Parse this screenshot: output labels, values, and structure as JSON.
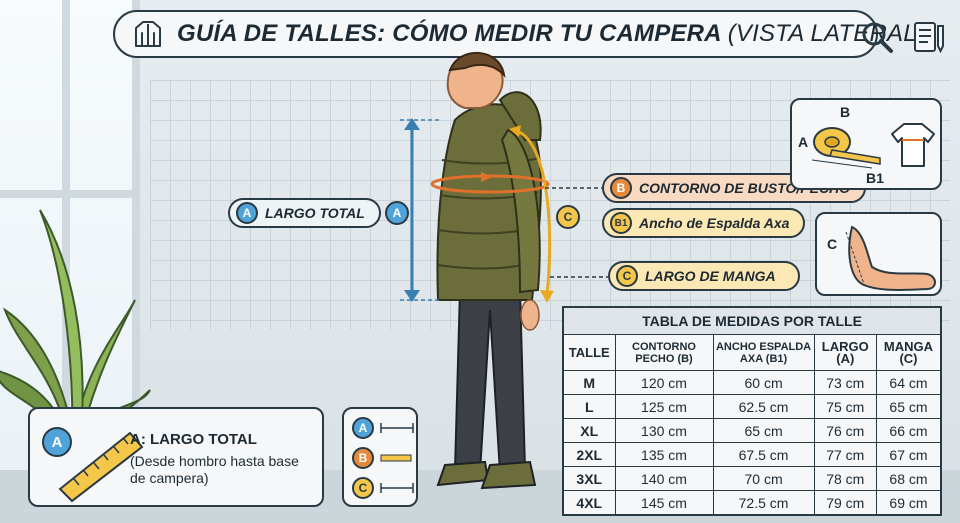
{
  "header": {
    "title": "GUÍA DE TALLES: CÓMO MEDIR TU CAMPERA",
    "subtitle": "(VISTA LATERAL)"
  },
  "icons": {
    "title_left": "jacket-icon",
    "search": "search-icon",
    "notes": "notepad-pencil-icon"
  },
  "callouts": {
    "largo": {
      "badge": "A",
      "label": "LARGO TOTAL"
    },
    "contorno": {
      "badge": "B",
      "label": "CONTORNO DE BUSTO/PECHO"
    },
    "espalda": {
      "badge": "B1",
      "label": "Ancho de Espalda Axa"
    },
    "manga": {
      "badge": "C",
      "label": "LARGO DE MANGA"
    }
  },
  "markers": {
    "a": "A",
    "c": "C"
  },
  "diagram_labels": {
    "b": "B",
    "a": "A",
    "b1": "B1",
    "c": "C"
  },
  "legend_card": {
    "badge": "A",
    "title": "A: LARGO TOTAL",
    "description": "(Desde hombro hasta base de campera)"
  },
  "mini_legend": [
    "A",
    "B",
    "C"
  ],
  "table": {
    "title": "TABLA DE MEDIDAS POR TALLE",
    "headers": [
      "TALLE",
      "CONTORNO PECHO (B)",
      "ANCHO ESPALDA AXA (B1)",
      "LARGO (A)",
      "MANGA (C)"
    ],
    "rows": [
      [
        "M",
        "120 cm",
        "60 cm",
        "73 cm",
        "64 cm"
      ],
      [
        "L",
        "125 cm",
        "62.5 cm",
        "75 cm",
        "65 cm"
      ],
      [
        "XL",
        "130 cm",
        "65 cm",
        "76 cm",
        "66 cm"
      ],
      [
        "2XL",
        "135 cm",
        "67.5 cm",
        "77 cm",
        "67 cm"
      ],
      [
        "3XL",
        "140 cm",
        "70 cm",
        "78 cm",
        "68 cm"
      ],
      [
        "4XL",
        "145 cm",
        "72.5 cm",
        "79 cm",
        "69 cm"
      ]
    ]
  },
  "colors": {
    "blue": "#4fa3d8",
    "orange": "#e58a3c",
    "yellow": "#f4c64a",
    "jacket": "#6b6d3a",
    "outline": "#2a3a45"
  }
}
